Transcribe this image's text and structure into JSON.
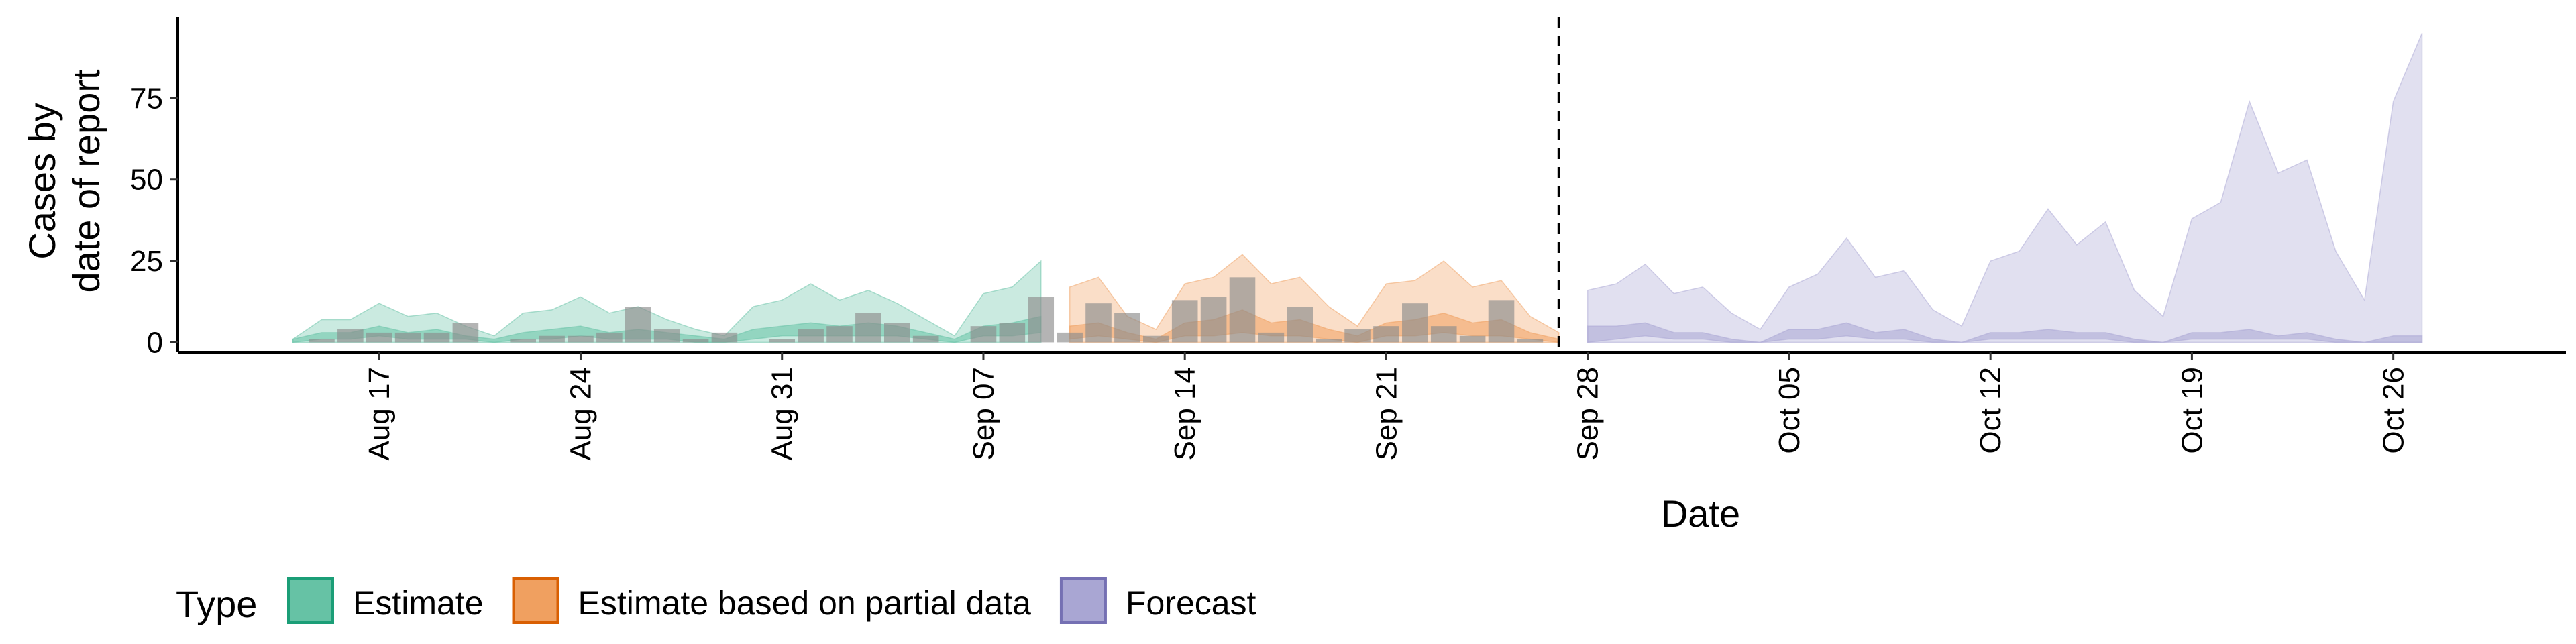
{
  "chart_data": {
    "type": "area",
    "xlabel": "Date",
    "ylabel_lines": [
      "Cases by",
      "date of report"
    ],
    "x_range": [
      "2020-08-10",
      "2020-11-01"
    ],
    "ylim": [
      -3,
      100
    ],
    "grid": false,
    "y_ticks": [
      0,
      25,
      50,
      75
    ],
    "x_ticks": [
      {
        "date": "2020-08-17",
        "label": "Aug 17"
      },
      {
        "date": "2020-08-24",
        "label": "Aug 24"
      },
      {
        "date": "2020-08-31",
        "label": "Aug 31"
      },
      {
        "date": "2020-09-07",
        "label": "Sep 07"
      },
      {
        "date": "2020-09-14",
        "label": "Sep 14"
      },
      {
        "date": "2020-09-21",
        "label": "Sep 21"
      },
      {
        "date": "2020-09-28",
        "label": "Sep 28"
      },
      {
        "date": "2020-10-05",
        "label": "Oct 05"
      },
      {
        "date": "2020-10-12",
        "label": "Oct 12"
      },
      {
        "date": "2020-10-19",
        "label": "Oct 19"
      },
      {
        "date": "2020-10-26",
        "label": "Oct 26"
      }
    ],
    "forecast_date": "2020-09-27",
    "legend": {
      "title": "Type",
      "position": "bottom",
      "items": [
        {
          "label": "Estimate",
          "fill": "#66c2a5",
          "stroke": "#1b9e77"
        },
        {
          "label": "Estimate based on partial data",
          "fill": "#f0a060",
          "stroke": "#d95f02"
        },
        {
          "label": "Forecast",
          "fill": "#a9a6d3",
          "stroke": "#7570b3"
        }
      ]
    },
    "series": [
      {
        "name": "Estimate",
        "color": "#66c2a5",
        "start": "2020-08-14",
        "outer_upper": [
          1,
          7,
          7,
          12,
          8,
          9,
          5,
          2,
          9,
          10,
          14,
          9,
          11,
          7,
          4,
          2,
          11,
          13,
          18,
          13,
          16,
          12,
          7,
          2,
          15,
          17,
          25
        ],
        "outer_lower": [
          0,
          0,
          0,
          0,
          0,
          0,
          0,
          0,
          0,
          0,
          0,
          0,
          0,
          0,
          0,
          0,
          0,
          0,
          0,
          0,
          0,
          0,
          0,
          0,
          0,
          0,
          0
        ],
        "inner_upper": [
          1,
          3,
          3,
          5,
          3,
          4,
          2,
          1,
          3,
          4,
          5,
          3,
          4,
          3,
          2,
          1,
          4,
          5,
          6,
          5,
          6,
          5,
          3,
          1,
          5,
          6,
          8
        ],
        "inner_lower": [
          0,
          1,
          1,
          2,
          1,
          1,
          1,
          0,
          1,
          1,
          2,
          1,
          1,
          1,
          0,
          0,
          1,
          2,
          2,
          2,
          2,
          2,
          1,
          0,
          2,
          2,
          3
        ]
      },
      {
        "name": "Estimate based on partial data",
        "color": "#f0a060",
        "start": "2020-09-10",
        "outer_upper": [
          17,
          20,
          8,
          4,
          18,
          20,
          27,
          18,
          20,
          11,
          5,
          18,
          19,
          25,
          17,
          19,
          8,
          3
        ],
        "outer_lower": [
          0,
          0,
          0,
          0,
          0,
          0,
          0,
          0,
          0,
          0,
          0,
          0,
          0,
          0,
          0,
          0,
          0,
          0
        ],
        "inner_upper": [
          5,
          6,
          3,
          1,
          6,
          7,
          10,
          6,
          7,
          4,
          2,
          6,
          7,
          9,
          6,
          7,
          3,
          1
        ],
        "inner_lower": [
          1,
          2,
          1,
          0,
          2,
          2,
          3,
          2,
          2,
          1,
          0,
          2,
          2,
          3,
          2,
          2,
          1,
          0
        ]
      },
      {
        "name": "Forecast",
        "color": "#a9a6d3",
        "start": "2020-09-28",
        "outer_upper": [
          16,
          18,
          24,
          15,
          17,
          9,
          4,
          17,
          21,
          32,
          20,
          22,
          10,
          5,
          25,
          28,
          41,
          30,
          37,
          16,
          8,
          38,
          43,
          74,
          52,
          56,
          28,
          13,
          74,
          95
        ],
        "outer_lower": [
          0,
          0,
          0,
          0,
          0,
          0,
          0,
          0,
          0,
          0,
          0,
          0,
          0,
          0,
          0,
          0,
          0,
          0,
          0,
          0,
          0,
          0,
          0,
          0,
          0,
          0,
          0,
          0,
          0,
          0
        ],
        "inner_upper": [
          5,
          5,
          6,
          3,
          3,
          1,
          0,
          4,
          4,
          6,
          3,
          4,
          1,
          0,
          3,
          3,
          4,
          3,
          3,
          1,
          0,
          3,
          3,
          4,
          2,
          3,
          1,
          0,
          2,
          2
        ],
        "inner_lower": [
          0,
          1,
          2,
          1,
          1,
          0,
          0,
          1,
          1,
          2,
          1,
          1,
          0,
          0,
          1,
          1,
          1,
          1,
          1,
          0,
          0,
          1,
          1,
          1,
          1,
          1,
          0,
          0,
          0,
          0
        ]
      }
    ],
    "reported_cases": [
      {
        "date": "2020-08-15",
        "value": 1
      },
      {
        "date": "2020-08-16",
        "value": 4
      },
      {
        "date": "2020-08-17",
        "value": 3
      },
      {
        "date": "2020-08-18",
        "value": 3
      },
      {
        "date": "2020-08-19",
        "value": 3
      },
      {
        "date": "2020-08-20",
        "value": 6
      },
      {
        "date": "2020-08-22",
        "value": 1
      },
      {
        "date": "2020-08-23",
        "value": 2
      },
      {
        "date": "2020-08-24",
        "value": 2
      },
      {
        "date": "2020-08-25",
        "value": 3
      },
      {
        "date": "2020-08-26",
        "value": 11
      },
      {
        "date": "2020-08-27",
        "value": 4
      },
      {
        "date": "2020-08-28",
        "value": 1
      },
      {
        "date": "2020-08-29",
        "value": 3
      },
      {
        "date": "2020-08-31",
        "value": 1
      },
      {
        "date": "2020-09-01",
        "value": 4
      },
      {
        "date": "2020-09-02",
        "value": 5
      },
      {
        "date": "2020-09-03",
        "value": 9
      },
      {
        "date": "2020-09-04",
        "value": 6
      },
      {
        "date": "2020-09-05",
        "value": 2
      },
      {
        "date": "2020-09-07",
        "value": 5
      },
      {
        "date": "2020-09-08",
        "value": 6
      },
      {
        "date": "2020-09-09",
        "value": 14
      },
      {
        "date": "2020-09-10",
        "value": 3
      },
      {
        "date": "2020-09-11",
        "value": 12
      },
      {
        "date": "2020-09-12",
        "value": 9
      },
      {
        "date": "2020-09-13",
        "value": 2
      },
      {
        "date": "2020-09-14",
        "value": 13
      },
      {
        "date": "2020-09-15",
        "value": 14
      },
      {
        "date": "2020-09-16",
        "value": 20
      },
      {
        "date": "2020-09-17",
        "value": 3
      },
      {
        "date": "2020-09-18",
        "value": 11
      },
      {
        "date": "2020-09-19",
        "value": 1
      },
      {
        "date": "2020-09-20",
        "value": 4
      },
      {
        "date": "2020-09-21",
        "value": 5
      },
      {
        "date": "2020-09-22",
        "value": 12
      },
      {
        "date": "2020-09-23",
        "value": 5
      },
      {
        "date": "2020-09-24",
        "value": 2
      },
      {
        "date": "2020-09-25",
        "value": 13
      },
      {
        "date": "2020-09-26",
        "value": 1
      }
    ]
  }
}
